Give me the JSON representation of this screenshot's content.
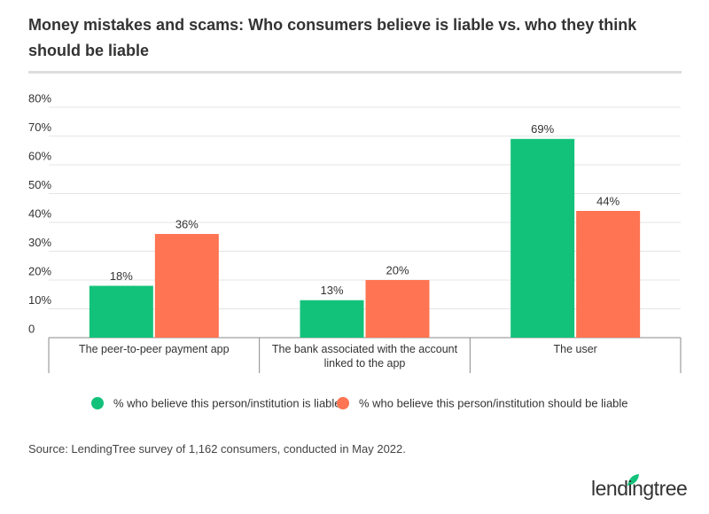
{
  "chart_data": {
    "type": "bar",
    "title": "Money mistakes and scams: Who consumers believe is liable vs. who they think should be liable",
    "categories": [
      "The peer-to-peer payment app",
      "The bank associated with the account linked to the app",
      "The user"
    ],
    "series": [
      {
        "name": "% who believe this person/institution is liable",
        "color": "#13c27a",
        "values": [
          18,
          13,
          69
        ],
        "value_labels": [
          "18%",
          "13%",
          "69%"
        ]
      },
      {
        "name": "% who believe this person/institution should be liable",
        "color": "#ff7452",
        "values": [
          36,
          20,
          44
        ],
        "value_labels": [
          "36%",
          "20%",
          "44%"
        ]
      }
    ],
    "ylim": [
      0,
      80
    ],
    "yticks": [
      0,
      {
        "value": 10,
        "label": "10%"
      },
      {
        "value": 20,
        "label": "20%"
      },
      {
        "value": 30,
        "label": "30%"
      },
      {
        "value": 40,
        "label": "40%"
      },
      {
        "value": 50,
        "label": "50%"
      },
      {
        "value": 60,
        "label": "60%"
      },
      {
        "value": 70,
        "label": "70%"
      },
      {
        "value": 80,
        "label": "80%"
      }
    ],
    "grid": true
  },
  "source": "Source: LendingTree survey of 1,162 consumers, conducted in May 2022.",
  "logo": "lendingtree"
}
